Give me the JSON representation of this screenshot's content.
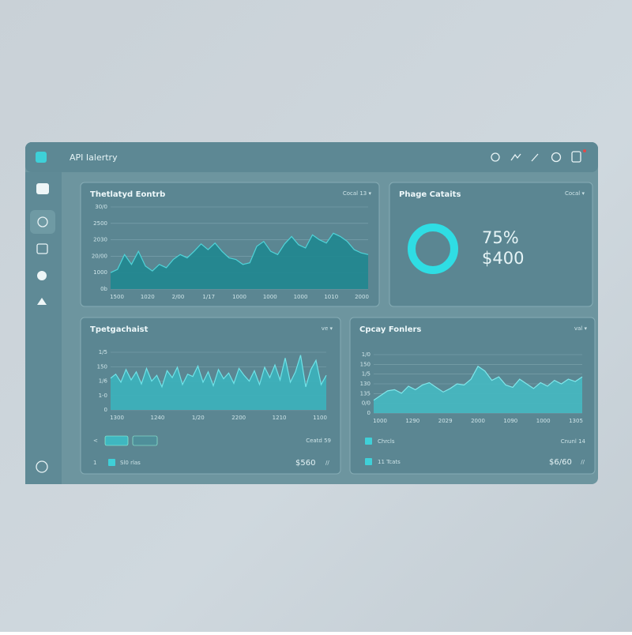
{
  "header": {
    "title": "API Ialertry"
  },
  "panels": [
    {
      "title": "Thetlatyd Eontrb",
      "menu": "Cocal 13 ▾",
      "chart": {
        "type": "area",
        "color": "#1f8790",
        "line_color": "#4fd3d8",
        "ylim": [
          0,
          100
        ],
        "yticks": [
          "30/0",
          "2500",
          "2030",
          "20/00",
          "1000",
          "0b"
        ],
        "xticks": [
          "1500",
          "1020",
          "2/00",
          "1/17",
          "1000",
          "1000",
          "1000",
          "1010",
          "2000"
        ],
        "values": [
          20,
          24,
          42,
          30,
          46,
          28,
          22,
          30,
          26,
          36,
          42,
          38,
          46,
          55,
          48,
          56,
          46,
          38,
          36,
          30,
          32,
          52,
          58,
          46,
          42,
          55,
          64,
          54,
          50,
          66,
          60,
          56,
          68,
          64,
          58,
          48,
          44,
          42
        ]
      }
    },
    {
      "title": "Phage Cataits",
      "menu": "Cocal ▾",
      "stats": [
        "75%",
        "$400"
      ]
    },
    {
      "title": "Tpetgachaist",
      "menu": "ve ▾",
      "chart": {
        "type": "area",
        "color": "#3bb3bc",
        "line_color": "#6fe3e8",
        "ylim": [
          0,
          100
        ],
        "yticks": [
          "1/5",
          "150",
          "1/6",
          "1-0",
          "0"
        ],
        "xticks": [
          "1300",
          "1240",
          "1/20",
          "2200",
          "1210",
          "1100"
        ],
        "values": [
          55,
          62,
          48,
          70,
          52,
          66,
          45,
          72,
          50,
          60,
          40,
          68,
          56,
          74,
          44,
          62,
          58,
          76,
          48,
          66,
          42,
          70,
          54,
          64,
          46,
          72,
          60,
          50,
          68,
          44,
          74,
          56,
          78,
          52,
          90,
          48,
          66,
          95,
          40,
          70,
          86,
          44,
          60
        ]
      },
      "controls": {
        "back": "<",
        "count": "Ceatd 59"
      },
      "footer": {
        "index": "1",
        "label": "Sl0 rlas",
        "amount": "$560",
        "more": "//"
      }
    },
    {
      "title": "Cpcay Fonlers",
      "menu": "val ▾",
      "chart": {
        "type": "area",
        "color": "#45b9c2",
        "line_color": "#7fe6ea",
        "ylim": [
          0,
          100
        ],
        "yticks": [
          "1/0",
          "150",
          "1/5",
          "130",
          "135",
          "0/0",
          "0"
        ],
        "xticks": [
          "1000",
          "1290",
          "2029",
          "2000",
          "1090",
          "1000",
          "1305"
        ],
        "values": [
          22,
          30,
          38,
          40,
          34,
          46,
          40,
          48,
          52,
          44,
          36,
          42,
          50,
          48,
          58,
          80,
          72,
          56,
          62,
          48,
          44,
          58,
          50,
          42,
          52,
          46,
          56,
          50,
          58,
          54,
          62
        ]
      },
      "rows": [
        {
          "label": "Chrcls",
          "count": "Cnunl 14"
        },
        {
          "label": "11 Tcats",
          "amount": "$6/60",
          "more": "//"
        }
      ]
    }
  ]
}
